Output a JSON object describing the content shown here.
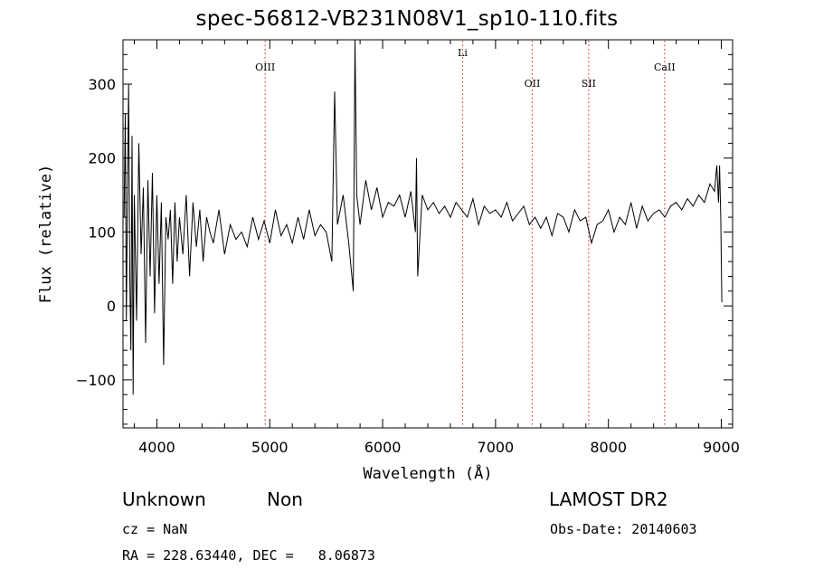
{
  "title": "spec-56812-VB231N08V1_sp10-110.fits",
  "info": {
    "class": "Unknown",
    "subclass": "Non",
    "survey": "LAMOST DR2",
    "cz": "cz = NaN",
    "obs_date": "Obs-Date: 20140603",
    "coords": "RA = 228.63440, DEC =   8.06873"
  },
  "colors": {
    "spectrum": "#000000",
    "line_markers": "#d04040",
    "axes": "#000000"
  },
  "chart_data": {
    "type": "line",
    "title": "spec-56812-VB231N08V1_sp10-110.fits",
    "xlabel": "Wavelength (Å)",
    "ylabel": "Flux (relative)",
    "xlim": [
      3700,
      9100
    ],
    "ylim": [
      -165,
      360
    ],
    "xticks": [
      4000,
      5000,
      6000,
      7000,
      8000,
      9000
    ],
    "yticks": [
      -100,
      0,
      100,
      200,
      300
    ],
    "grid": false,
    "legend": "none",
    "line_markers": [
      {
        "label": "OIII",
        "x": 4959
      },
      {
        "label": "Li",
        "x": 6708
      },
      {
        "label": "OII",
        "x": 7325
      },
      {
        "label": "SII",
        "x": 7825
      },
      {
        "label": "CaII",
        "x": 8498
      }
    ],
    "series": [
      {
        "x": [
          3710,
          3720,
          3730,
          3740,
          3750,
          3760,
          3770,
          3780,
          3790,
          3800,
          3820,
          3840,
          3860,
          3880,
          3900,
          3920,
          3940,
          3960,
          3980,
          4000,
          4020,
          4040,
          4060,
          4080,
          4100,
          4120,
          4140,
          4160,
          4180,
          4200,
          4230,
          4260,
          4290,
          4320,
          4350,
          4380,
          4410,
          4440,
          4470,
          4500,
          4550,
          4600,
          4650,
          4700,
          4750,
          4800,
          4850,
          4900,
          4950,
          5000,
          5050,
          5100,
          5150,
          5200,
          5250,
          5300,
          5350,
          5400,
          5450,
          5500,
          5550,
          5575,
          5600,
          5650,
          5700,
          5740,
          5755,
          5770,
          5800,
          5850,
          5900,
          5950,
          6000,
          6050,
          6100,
          6150,
          6200,
          6250,
          6290,
          6300,
          6310,
          6350,
          6400,
          6450,
          6500,
          6550,
          6600,
          6650,
          6700,
          6750,
          6800,
          6850,
          6900,
          6950,
          7000,
          7050,
          7100,
          7150,
          7200,
          7250,
          7300,
          7350,
          7400,
          7450,
          7500,
          7550,
          7600,
          7650,
          7700,
          7750,
          7800,
          7850,
          7900,
          7950,
          8000,
          8050,
          8100,
          8150,
          8200,
          8250,
          8300,
          8350,
          8400,
          8450,
          8500,
          8550,
          8600,
          8650,
          8700,
          8750,
          8800,
          8850,
          8900,
          8940,
          8960,
          8975,
          8985,
          8995,
          9005
        ],
        "values": [
          120,
          260,
          -20,
          160,
          300,
          40,
          -60,
          230,
          -120,
          150,
          -20,
          220,
          70,
          160,
          -50,
          170,
          40,
          180,
          -10,
          150,
          30,
          140,
          -80,
          120,
          90,
          130,
          30,
          140,
          60,
          120,
          70,
          150,
          40,
          140,
          80,
          130,
          60,
          120,
          100,
          85,
          130,
          70,
          110,
          90,
          100,
          80,
          120,
          90,
          115,
          85,
          130,
          95,
          110,
          85,
          120,
          90,
          130,
          95,
          110,
          100,
          60,
          290,
          110,
          150,
          85,
          20,
          360,
          150,
          110,
          170,
          130,
          160,
          120,
          140,
          135,
          150,
          120,
          155,
          100,
          200,
          40,
          150,
          130,
          140,
          125,
          135,
          120,
          140,
          130,
          120,
          145,
          110,
          135,
          125,
          130,
          120,
          140,
          115,
          125,
          135,
          110,
          120,
          105,
          120,
          95,
          125,
          120,
          100,
          130,
          115,
          120,
          85,
          110,
          115,
          130,
          100,
          120,
          110,
          140,
          105,
          135,
          115,
          125,
          130,
          120,
          135,
          140,
          130,
          145,
          135,
          150,
          140,
          165,
          155,
          190,
          140,
          190,
          120,
          5
        ]
      }
    ]
  }
}
